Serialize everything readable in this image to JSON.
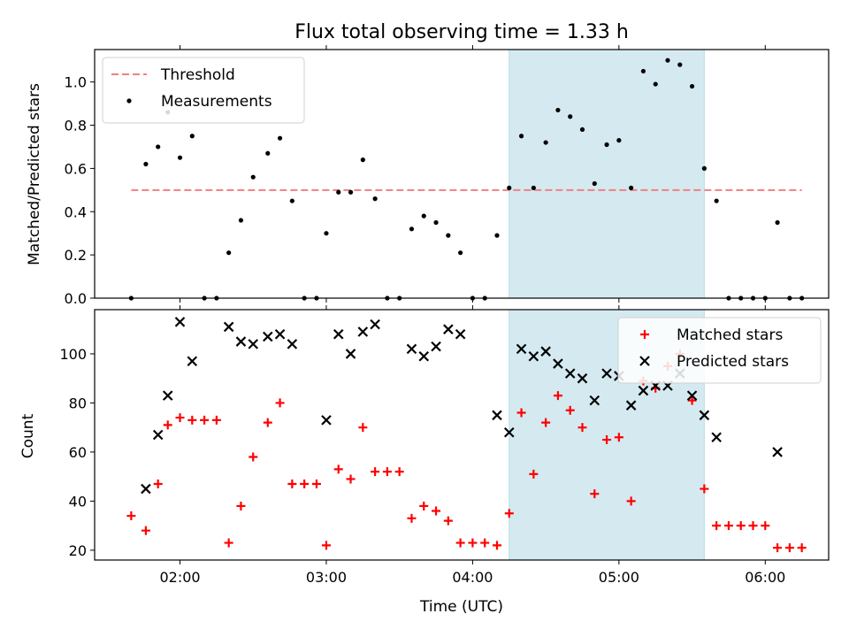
{
  "figure": {
    "title": "Flux total observing time = 1.33 h",
    "xlabel": "Time (UTC)"
  },
  "chart_data": [
    {
      "type": "scatter",
      "ylabel": "Matched/Predicted stars",
      "ylim": [
        0,
        1.15
      ],
      "yticks": [
        0.0,
        0.2,
        0.4,
        0.6,
        0.8,
        1.0
      ],
      "ytick_labels": [
        "0.0",
        "0.2",
        "0.4",
        "0.6",
        "0.8",
        "1.0"
      ],
      "xlim": [
        "01:25",
        "06:26"
      ],
      "xticks": [
        "02:00",
        "03:00",
        "04:00",
        "05:00",
        "06:00"
      ],
      "shaded_span": {
        "from": "04:15",
        "to": "05:35",
        "color": "#d4eaf0"
      },
      "legend": {
        "position": "upper-left"
      },
      "threshold": {
        "name": "Threshold",
        "value": 0.5,
        "from": "01:40",
        "to": "06:15",
        "color": "#f08080"
      },
      "series": [
        {
          "name": "Measurements",
          "color": "#000000",
          "marker": "dot",
          "points": [
            [
              "01:40",
              0.0
            ],
            [
              "01:46",
              0.62
            ],
            [
              "01:51",
              0.7
            ],
            [
              "01:55",
              0.86
            ],
            [
              "02:00",
              0.65
            ],
            [
              "02:05",
              0.75
            ],
            [
              "02:10",
              0.0
            ],
            [
              "02:15",
              0.0
            ],
            [
              "02:20",
              0.21
            ],
            [
              "02:25",
              0.36
            ],
            [
              "02:30",
              0.56
            ],
            [
              "02:36",
              0.67
            ],
            [
              "02:41",
              0.74
            ],
            [
              "02:46",
              0.45
            ],
            [
              "02:51",
              0.0
            ],
            [
              "02:56",
              0.0
            ],
            [
              "03:00",
              0.3
            ],
            [
              "03:05",
              0.49
            ],
            [
              "03:10",
              0.49
            ],
            [
              "03:15",
              0.64
            ],
            [
              "03:20",
              0.46
            ],
            [
              "03:25",
              0.0
            ],
            [
              "03:30",
              0.0
            ],
            [
              "03:35",
              0.32
            ],
            [
              "03:40",
              0.38
            ],
            [
              "03:45",
              0.35
            ],
            [
              "03:50",
              0.29
            ],
            [
              "03:55",
              0.21
            ],
            [
              "04:00",
              0.0
            ],
            [
              "04:05",
              0.0
            ],
            [
              "04:10",
              0.29
            ],
            [
              "04:15",
              0.51
            ],
            [
              "04:20",
              0.75
            ],
            [
              "04:25",
              0.51
            ],
            [
              "04:30",
              0.72
            ],
            [
              "04:35",
              0.87
            ],
            [
              "04:40",
              0.84
            ],
            [
              "04:45",
              0.78
            ],
            [
              "04:50",
              0.53
            ],
            [
              "04:55",
              0.71
            ],
            [
              "05:00",
              0.73
            ],
            [
              "05:05",
              0.51
            ],
            [
              "05:10",
              1.05
            ],
            [
              "05:15",
              0.99
            ],
            [
              "05:20",
              1.1
            ],
            [
              "05:25",
              1.08
            ],
            [
              "05:30",
              0.98
            ],
            [
              "05:35",
              0.6
            ],
            [
              "05:40",
              0.45
            ],
            [
              "05:45",
              0.0
            ],
            [
              "05:50",
              0.0
            ],
            [
              "05:55",
              0.0
            ],
            [
              "06:00",
              0.0
            ],
            [
              "06:05",
              0.35
            ],
            [
              "06:10",
              0.0
            ],
            [
              "06:15",
              0.0
            ]
          ]
        }
      ]
    },
    {
      "type": "scatter",
      "ylabel": "Count",
      "ylim": [
        16,
        118
      ],
      "yticks": [
        20,
        40,
        60,
        80,
        100
      ],
      "ytick_labels": [
        "20",
        "40",
        "60",
        "80",
        "100"
      ],
      "xlim": [
        "01:25",
        "06:26"
      ],
      "xticks": [
        "02:00",
        "03:00",
        "04:00",
        "05:00",
        "06:00"
      ],
      "xtick_labels": [
        "02:00",
        "03:00",
        "04:00",
        "05:00",
        "06:00"
      ],
      "shaded_span": {
        "from": "04:15",
        "to": "05:35",
        "color": "#d4eaf0"
      },
      "legend": {
        "position": "upper-right"
      },
      "series": [
        {
          "name": "Matched stars",
          "color": "#ff0000",
          "marker": "plus",
          "points": [
            [
              "01:40",
              34
            ],
            [
              "01:46",
              28
            ],
            [
              "01:51",
              47
            ],
            [
              "01:55",
              71
            ],
            [
              "02:00",
              74
            ],
            [
              "02:05",
              73
            ],
            [
              "02:10",
              73
            ],
            [
              "02:15",
              73
            ],
            [
              "02:20",
              23
            ],
            [
              "02:25",
              38
            ],
            [
              "02:30",
              58
            ],
            [
              "02:36",
              72
            ],
            [
              "02:41",
              80
            ],
            [
              "02:46",
              47
            ],
            [
              "02:51",
              47
            ],
            [
              "02:56",
              47
            ],
            [
              "03:00",
              22
            ],
            [
              "03:05",
              53
            ],
            [
              "03:10",
              49
            ],
            [
              "03:15",
              70
            ],
            [
              "03:20",
              52
            ],
            [
              "03:25",
              52
            ],
            [
              "03:30",
              52
            ],
            [
              "03:35",
              33
            ],
            [
              "03:40",
              38
            ],
            [
              "03:45",
              36
            ],
            [
              "03:50",
              32
            ],
            [
              "03:55",
              23
            ],
            [
              "04:00",
              23
            ],
            [
              "04:05",
              23
            ],
            [
              "04:10",
              22
            ],
            [
              "04:15",
              35
            ],
            [
              "04:20",
              76
            ],
            [
              "04:25",
              51
            ],
            [
              "04:30",
              72
            ],
            [
              "04:35",
              83
            ],
            [
              "04:40",
              77
            ],
            [
              "04:45",
              70
            ],
            [
              "04:50",
              43
            ],
            [
              "04:55",
              65
            ],
            [
              "05:00",
              66
            ],
            [
              "05:05",
              40
            ],
            [
              "05:10",
              89
            ],
            [
              "05:15",
              86
            ],
            [
              "05:20",
              95
            ],
            [
              "05:25",
              100
            ],
            [
              "05:30",
              81
            ],
            [
              "05:35",
              45
            ],
            [
              "05:40",
              30
            ],
            [
              "05:45",
              30
            ],
            [
              "05:50",
              30
            ],
            [
              "05:55",
              30
            ],
            [
              "06:00",
              30
            ],
            [
              "06:05",
              21
            ],
            [
              "06:10",
              21
            ],
            [
              "06:15",
              21
            ]
          ]
        },
        {
          "name": "Predicted stars",
          "color": "#000000",
          "marker": "x",
          "points": [
            [
              "01:46",
              45
            ],
            [
              "01:51",
              67
            ],
            [
              "01:55",
              83
            ],
            [
              "02:00",
              113
            ],
            [
              "02:05",
              97
            ],
            [
              "02:20",
              111
            ],
            [
              "02:25",
              105
            ],
            [
              "02:30",
              104
            ],
            [
              "02:36",
              107
            ],
            [
              "02:41",
              108
            ],
            [
              "02:46",
              104
            ],
            [
              "03:00",
              73
            ],
            [
              "03:05",
              108
            ],
            [
              "03:10",
              100
            ],
            [
              "03:15",
              109
            ],
            [
              "03:20",
              112
            ],
            [
              "03:35",
              102
            ],
            [
              "03:40",
              99
            ],
            [
              "03:45",
              103
            ],
            [
              "03:50",
              110
            ],
            [
              "03:55",
              108
            ],
            [
              "04:10",
              75
            ],
            [
              "04:15",
              68
            ],
            [
              "04:20",
              102
            ],
            [
              "04:25",
              99
            ],
            [
              "04:30",
              101
            ],
            [
              "04:35",
              96
            ],
            [
              "04:40",
              92
            ],
            [
              "04:45",
              90
            ],
            [
              "04:50",
              81
            ],
            [
              "04:55",
              92
            ],
            [
              "05:00",
              91
            ],
            [
              "05:05",
              79
            ],
            [
              "05:10",
              85
            ],
            [
              "05:15",
              87
            ],
            [
              "05:20",
              87
            ],
            [
              "05:25",
              92
            ],
            [
              "05:30",
              83
            ],
            [
              "05:35",
              75
            ],
            [
              "05:40",
              66
            ],
            [
              "06:05",
              60
            ]
          ]
        }
      ]
    }
  ]
}
